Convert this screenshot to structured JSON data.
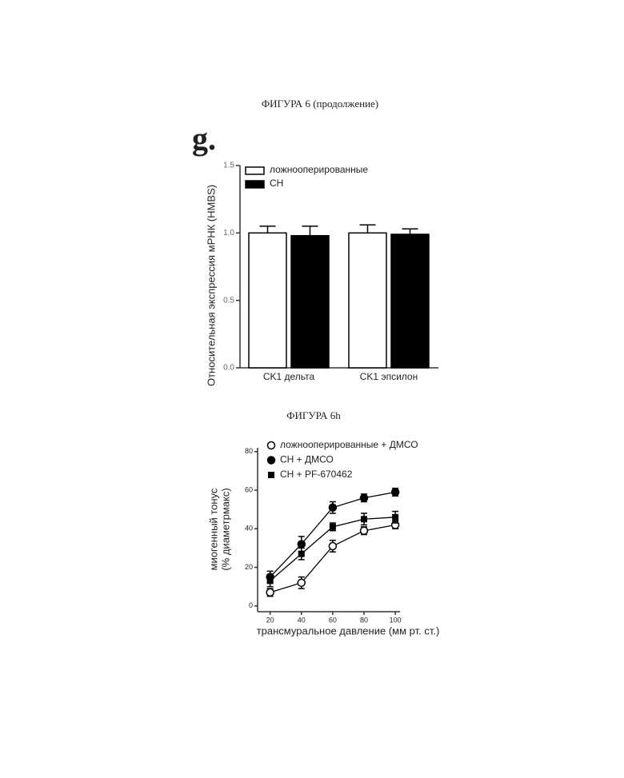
{
  "heading": "ФИГУРА 6 (продолжение)",
  "panel_label": "g.",
  "second_heading": "ФИГУРА 6h",
  "chart_data": [
    {
      "type": "bar",
      "ylabel": "Относительная экспрессия мРНК (HMBS)",
      "categories": [
        "CK1 дельта",
        "CK1 эпсилон"
      ],
      "series": [
        {
          "name": "ложнооперированные",
          "color": "#ffffff",
          "values": [
            1.0,
            1.0
          ],
          "errors": [
            0.05,
            0.06
          ]
        },
        {
          "name": "CH",
          "color": "#000000",
          "values": [
            0.98,
            0.99
          ],
          "errors": [
            0.07,
            0.04
          ]
        }
      ],
      "ylim": [
        0,
        1.5
      ],
      "yticks": [
        {
          "value": 0,
          "label": "0.0"
        },
        {
          "value": 0.5,
          "label": "0.5"
        },
        {
          "value": 1,
          "label": "1.0"
        },
        {
          "value": 1.5,
          "label": "1.5"
        }
      ],
      "legend": "top-left"
    },
    {
      "type": "line",
      "xlabel": "трансмуральное давление (мм рт. ст.)",
      "ylabel": [
        "миогенный тонус",
        "(% диаметрмакс)"
      ],
      "x": [
        20,
        40,
        60,
        80,
        100
      ],
      "series": [
        {
          "name": "ложнооперированные + ДМСО",
          "color": "#000000",
          "marker": "circle-open",
          "values": [
            7,
            12,
            31,
            39,
            42
          ],
          "errors": [
            2,
            3,
            3,
            2,
            2
          ]
        },
        {
          "name": "CH + ДМСО",
          "color": "#000000",
          "marker": "circle",
          "values": [
            15,
            32,
            51,
            56,
            59
          ],
          "errors": [
            3,
            4,
            3,
            2,
            2
          ]
        },
        {
          "name": "CH + PF-670462",
          "color": "#000000",
          "marker": "square",
          "values": [
            13,
            27,
            41,
            45,
            46
          ],
          "errors": [
            3,
            3,
            2,
            3,
            3
          ]
        }
      ],
      "xlim": [
        12,
        103
      ],
      "ylim": [
        -3,
        82
      ],
      "xticks": [
        20,
        40,
        60,
        80,
        100
      ],
      "yticks": [
        0,
        20,
        40,
        60,
        80
      ],
      "legend": "top-left"
    }
  ]
}
